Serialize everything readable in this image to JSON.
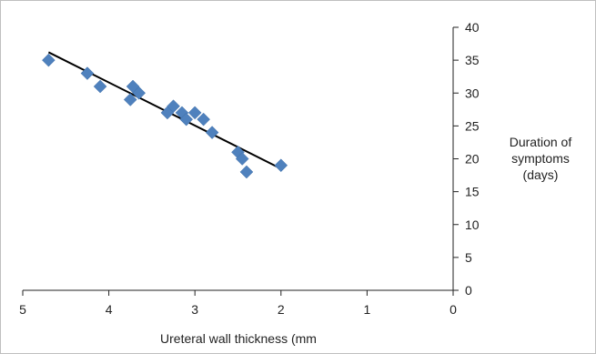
{
  "chart_data": {
    "type": "scatter",
    "title": "",
    "xlabel": "Ureteral wall thickness (mm",
    "ylabel_lines": [
      "Duration of",
      "symptoms",
      "(days)"
    ],
    "x_axis": {
      "min": 0,
      "max": 5,
      "reversed": true,
      "ticks": [
        5,
        4,
        3,
        2,
        1,
        0
      ],
      "tick_labels": [
        "5",
        "4",
        "3",
        "2",
        "1",
        "0"
      ]
    },
    "y_axis": {
      "min": 0,
      "max": 40,
      "position": "right",
      "ticks": [
        0,
        5,
        10,
        15,
        20,
        25,
        30,
        35,
        40
      ],
      "tick_labels": [
        "0",
        "5",
        "10",
        "15",
        "20",
        "25",
        "30",
        "35",
        "40"
      ]
    },
    "grid": false,
    "legend": "none",
    "marker_color": "#4F81BD",
    "trendline_color": "#000000",
    "series": [
      {
        "points": [
          [
            4.7,
            35
          ],
          [
            4.25,
            33
          ],
          [
            4.1,
            31
          ],
          [
            3.75,
            29
          ],
          [
            3.72,
            31
          ],
          [
            3.65,
            30
          ],
          [
            3.32,
            27
          ],
          [
            3.25,
            28
          ],
          [
            3.15,
            27
          ],
          [
            3.1,
            26
          ],
          [
            3.0,
            27
          ],
          [
            2.9,
            26
          ],
          [
            2.8,
            24
          ],
          [
            2.5,
            21
          ],
          [
            2.45,
            20
          ],
          [
            2.4,
            18
          ],
          [
            2.0,
            19
          ]
        ]
      }
    ],
    "trendline": {
      "x": [
        4.7,
        2.0
      ],
      "y": [
        36.2,
        18.5
      ]
    }
  }
}
